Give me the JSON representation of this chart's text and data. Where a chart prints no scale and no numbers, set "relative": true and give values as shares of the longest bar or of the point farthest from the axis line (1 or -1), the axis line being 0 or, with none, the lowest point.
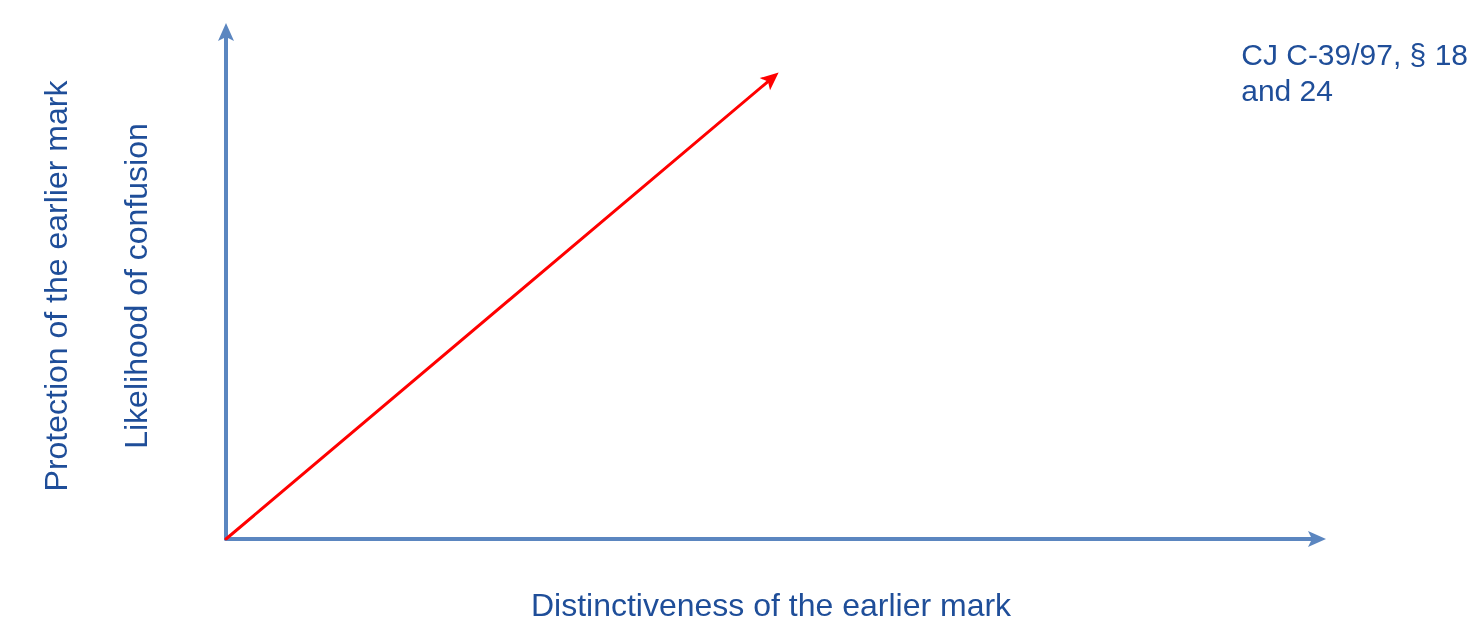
{
  "chart_data": {
    "type": "line",
    "relative": true,
    "xlabel": "Distinctiveness of the earlier mark",
    "ylabel": "Protection of the earlier mark\nLikelihood of confusion",
    "categories": [
      null,
      null,
      null
    ],
    "series": [
      {
        "color": "#ff0000",
        "values": [
          0,
          1,
          null
        ]
      }
    ],
    "annotations": [
      "CJ C-39/97, § 18\nand 24"
    ],
    "grid": false,
    "line_style": "solid"
  }
}
